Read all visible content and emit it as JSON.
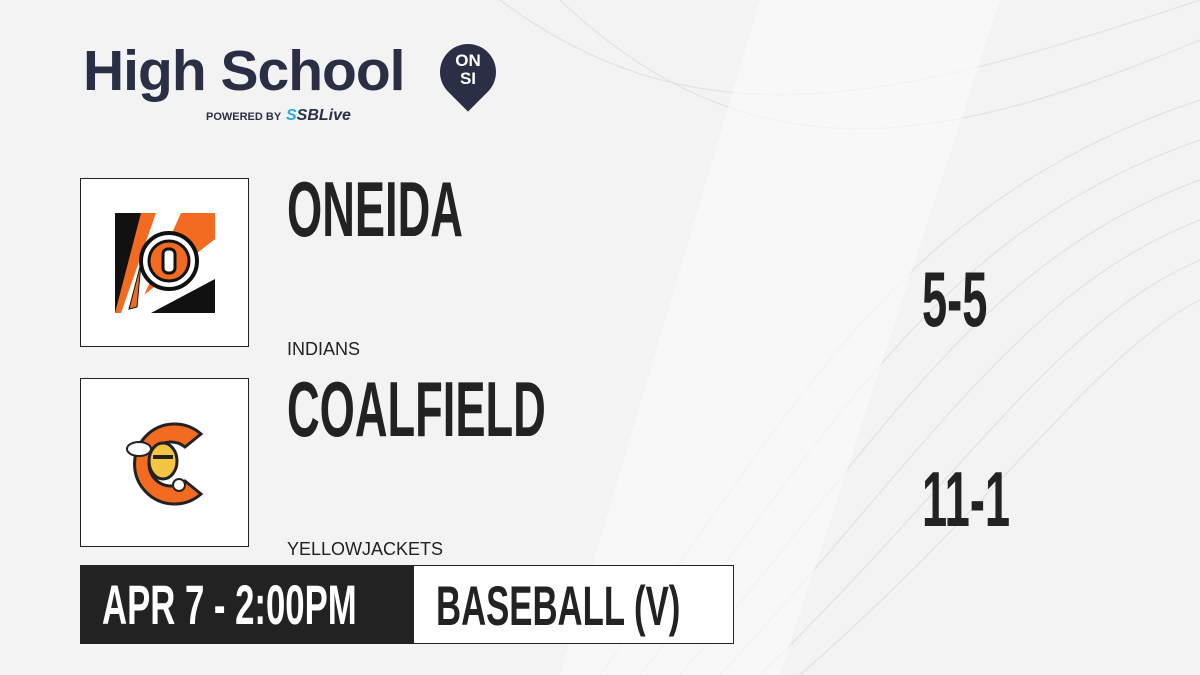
{
  "brand": {
    "title": "High School",
    "badge_line1": "ON",
    "badge_line2": "SI",
    "powered_by": "POWERED BY",
    "partner_prefix": "S",
    "partner": "SBLive"
  },
  "teams": [
    {
      "name": "ONEIDA",
      "mascot": "INDIANS",
      "score": "5-5",
      "logo": "oneida-indians-logo",
      "color": "#f26b21"
    },
    {
      "name": "COALFIELD",
      "mascot": "YELLOWJACKETS",
      "score": "11-1",
      "logo": "coalfield-yellowjacket-logo",
      "color": "#f26b21"
    }
  ],
  "game": {
    "datetime": "APR 7 - 2:00PM",
    "sport": "BASEBALL (V)"
  }
}
